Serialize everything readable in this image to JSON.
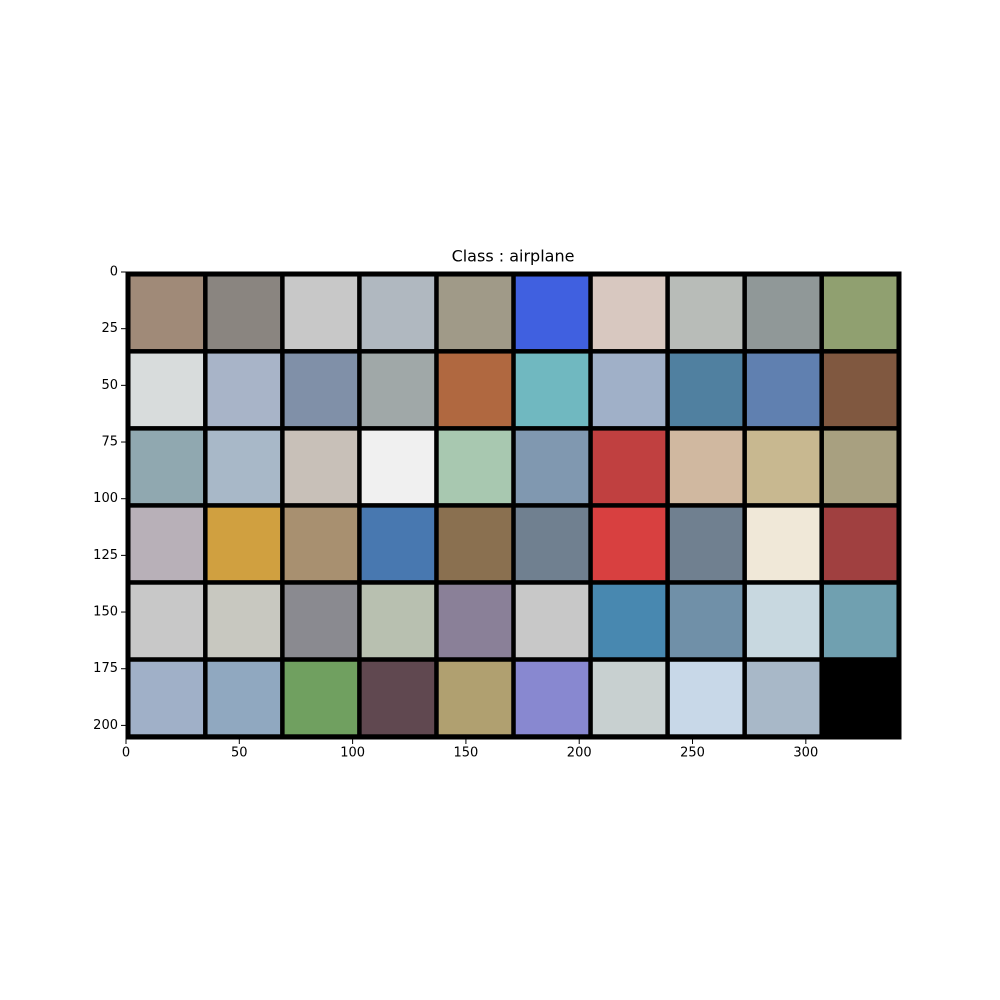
{
  "chart_data": {
    "type": "image",
    "title": "Class : airplane",
    "xlim": [
      0,
      342
    ],
    "ylim": [
      206,
      0
    ],
    "xticks": [
      0,
      50,
      100,
      150,
      200,
      250,
      300
    ],
    "yticks": [
      0,
      25,
      50,
      75,
      100,
      125,
      150,
      175,
      200
    ]
  }
}
